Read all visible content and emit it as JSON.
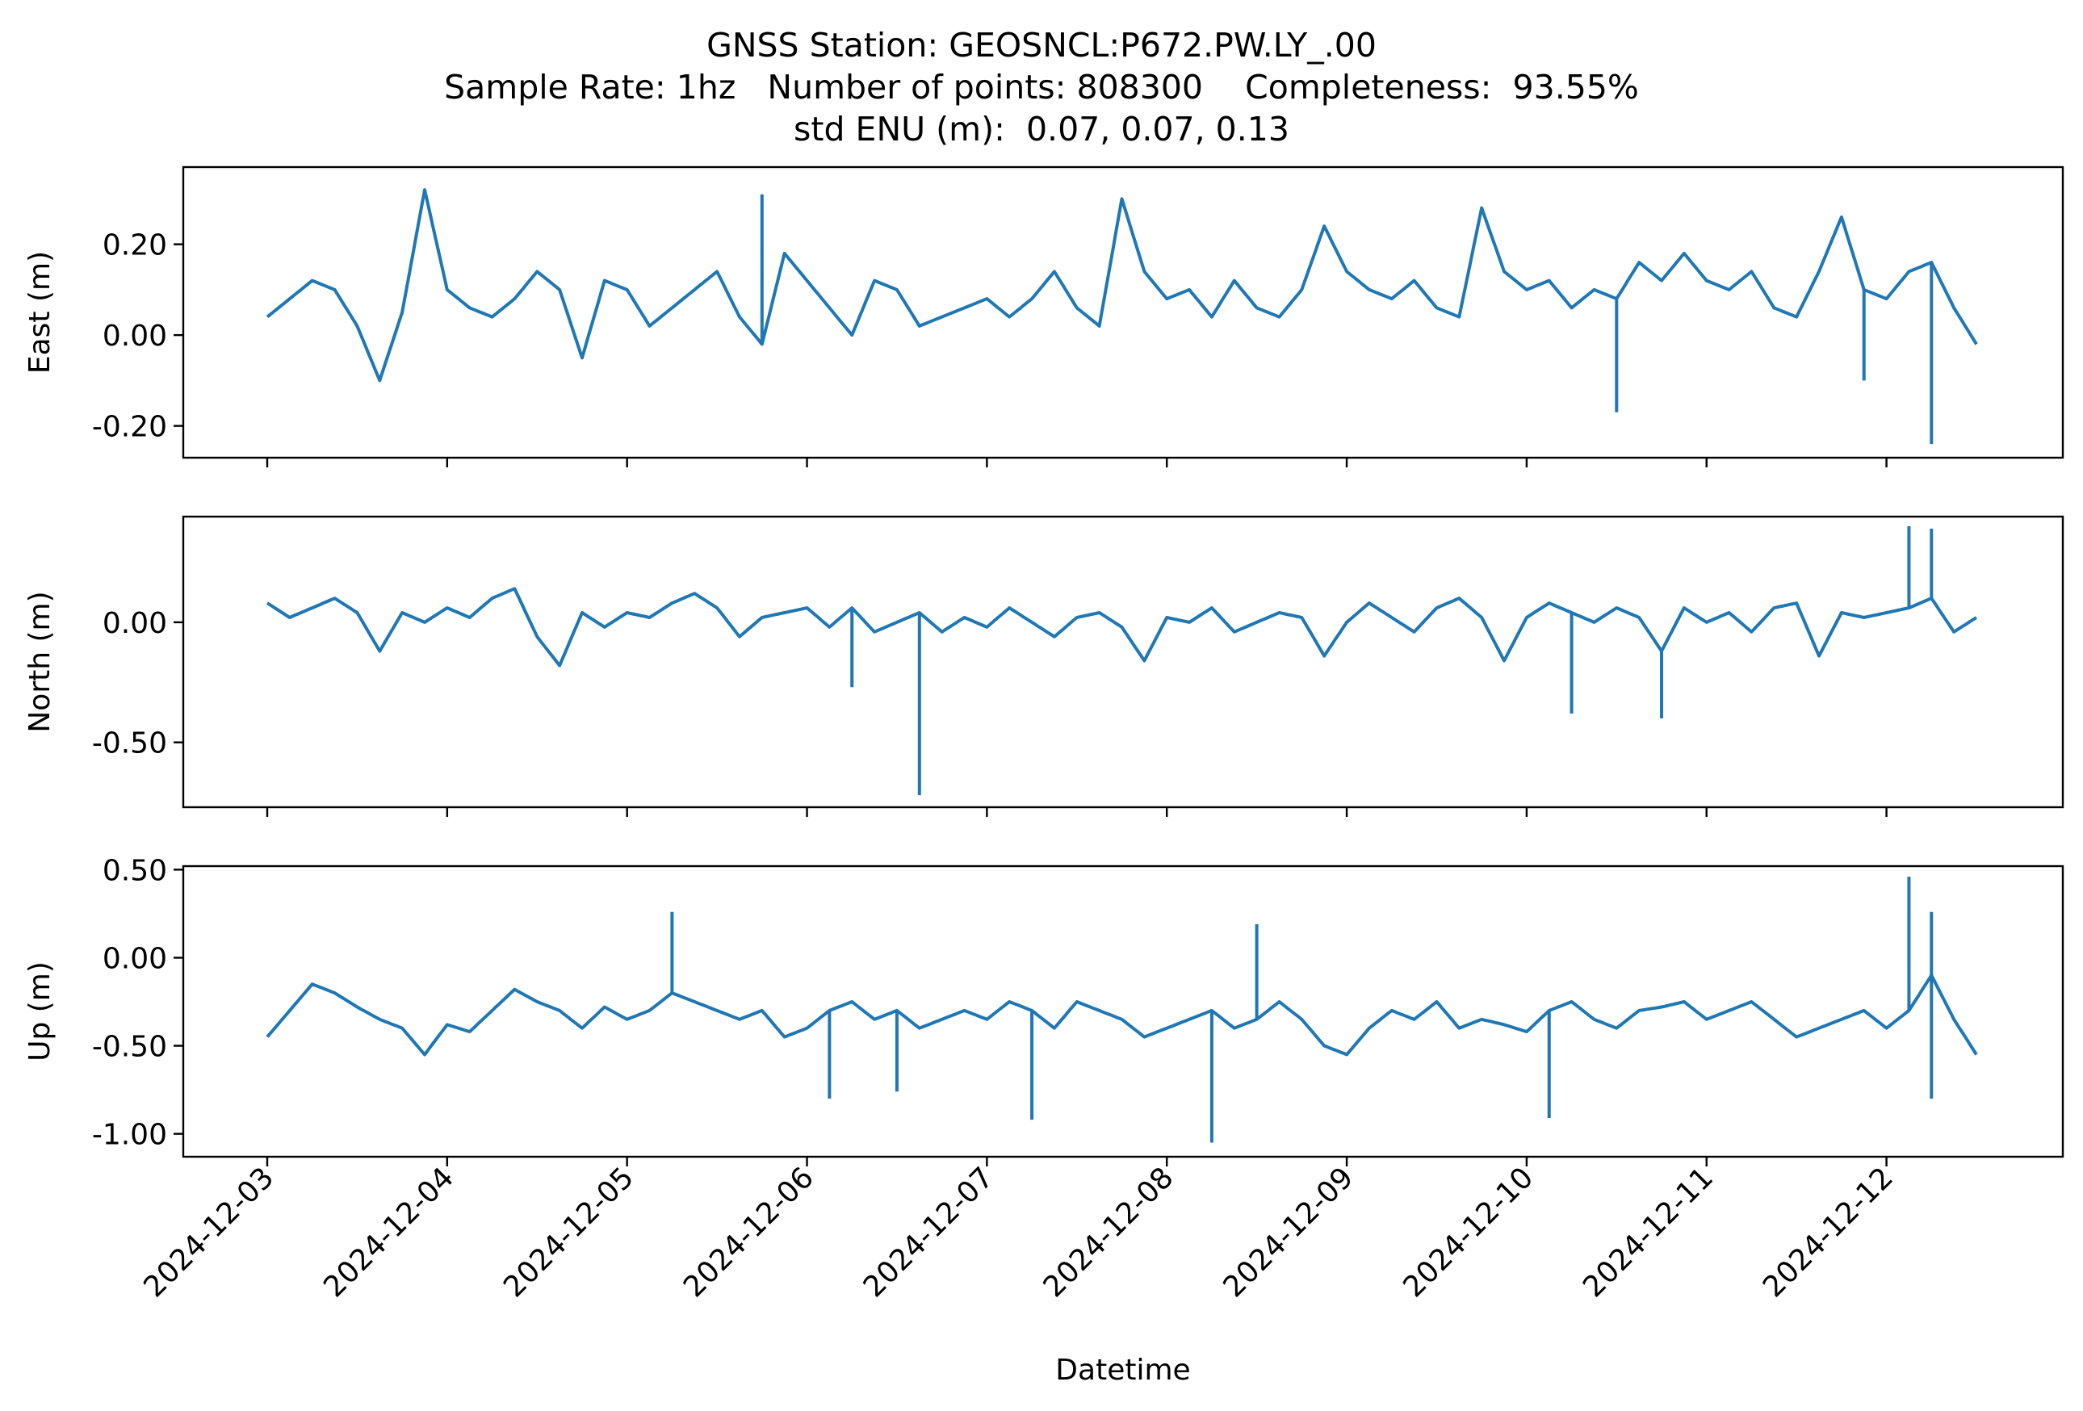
{
  "title_lines": [
    "GNSS Station: GEOSNCL:P672.PW.LY_.00",
    "Sample Rate: 1hz   Number of points: 808300    Completeness:  93.55%",
    "std ENU (m):  0.07, 0.07, 0.13"
  ],
  "chart_data": {
    "type": "line",
    "xlabel": "Datetime",
    "x_range": [
      "2024-12-03T00:00",
      "2024-12-12T12:00"
    ],
    "x_ticks": [
      "2024-12-03",
      "2024-12-04",
      "2024-12-05",
      "2024-12-06",
      "2024-12-07",
      "2024-12-08",
      "2024-12-09",
      "2024-12-10",
      "2024-12-11",
      "2024-12-12"
    ],
    "series_color": "#1f77b4",
    "panels": [
      {
        "ylabel": "East (m)",
        "ylim": [
          -0.27,
          0.37
        ],
        "yticks": [
          -0.2,
          0.0,
          0.2
        ],
        "ytick_labels": [
          "-0.20",
          "0.00",
          "0.20"
        ],
        "series": {
          "x": [
            "2024-12-03T00:00",
            "2024-12-03T03:00",
            "2024-12-03T06:00",
            "2024-12-03T09:00",
            "2024-12-03T12:00",
            "2024-12-03T15:00",
            "2024-12-03T18:00",
            "2024-12-03T21:00",
            "2024-12-04T00:00",
            "2024-12-04T03:00",
            "2024-12-04T06:00",
            "2024-12-04T09:00",
            "2024-12-04T12:00",
            "2024-12-04T15:00",
            "2024-12-04T18:00",
            "2024-12-04T21:00",
            "2024-12-05T00:00",
            "2024-12-05T03:00",
            "2024-12-05T06:00",
            "2024-12-05T09:00",
            "2024-12-05T12:00",
            "2024-12-05T15:00",
            "2024-12-05T18:00",
            "2024-12-05T21:00",
            "2024-12-06T00:00",
            "2024-12-06T03:00",
            "2024-12-06T06:00",
            "2024-12-06T09:00",
            "2024-12-06T12:00",
            "2024-12-06T15:00",
            "2024-12-06T18:00",
            "2024-12-06T21:00",
            "2024-12-07T00:00",
            "2024-12-07T03:00",
            "2024-12-07T06:00",
            "2024-12-07T09:00",
            "2024-12-07T12:00",
            "2024-12-07T15:00",
            "2024-12-07T18:00",
            "2024-12-07T21:00",
            "2024-12-08T00:00",
            "2024-12-08T03:00",
            "2024-12-08T06:00",
            "2024-12-08T09:00",
            "2024-12-08T12:00",
            "2024-12-08T15:00",
            "2024-12-08T18:00",
            "2024-12-08T21:00",
            "2024-12-09T00:00",
            "2024-12-09T03:00",
            "2024-12-09T06:00",
            "2024-12-09T09:00",
            "2024-12-09T12:00",
            "2024-12-09T15:00",
            "2024-12-09T18:00",
            "2024-12-09T21:00",
            "2024-12-10T00:00",
            "2024-12-10T03:00",
            "2024-12-10T06:00",
            "2024-12-10T09:00",
            "2024-12-10T12:00",
            "2024-12-10T15:00",
            "2024-12-10T18:00",
            "2024-12-10T21:00",
            "2024-12-11T00:00",
            "2024-12-11T03:00",
            "2024-12-11T06:00",
            "2024-12-11T09:00",
            "2024-12-11T12:00",
            "2024-12-11T15:00",
            "2024-12-11T18:00",
            "2024-12-11T21:00",
            "2024-12-12T00:00",
            "2024-12-12T03:00",
            "2024-12-12T06:00",
            "2024-12-12T09:00",
            "2024-12-12T12:00"
          ],
          "y": [
            0.04,
            0.08,
            0.12,
            0.1,
            0.02,
            -0.1,
            0.05,
            0.32,
            0.1,
            0.06,
            0.04,
            0.08,
            0.14,
            0.1,
            -0.05,
            0.12,
            0.1,
            0.02,
            0.06,
            0.1,
            0.14,
            0.04,
            -0.02,
            0.18,
            0.12,
            0.06,
            0.0,
            0.12,
            0.1,
            0.02,
            0.04,
            0.06,
            0.08,
            0.04,
            0.08,
            0.14,
            0.06,
            0.02,
            0.3,
            0.14,
            0.08,
            0.1,
            0.04,
            0.12,
            0.06,
            0.04,
            0.1,
            0.24,
            0.14,
            0.1,
            0.08,
            0.12,
            0.06,
            0.04,
            0.28,
            0.14,
            0.1,
            0.12,
            0.06,
            0.1,
            0.08,
            0.16,
            0.12,
            0.18,
            0.12,
            0.1,
            0.14,
            0.06,
            0.04,
            0.14,
            0.26,
            0.1,
            0.08,
            0.14,
            0.16,
            0.06,
            -0.02
          ],
          "spikes": [
            [
              "2024-12-05T18:00",
              0.31
            ],
            [
              "2024-12-10T12:00",
              -0.17
            ],
            [
              "2024-12-11T21:00",
              -0.1
            ],
            [
              "2024-12-12T06:00",
              -0.24
            ]
          ]
        }
      },
      {
        "ylabel": "North (m)",
        "ylim": [
          -0.77,
          0.44
        ],
        "yticks": [
          -0.5,
          0.0
        ],
        "ytick_labels": [
          "-0.50",
          "0.00"
        ],
        "series": {
          "x": [
            "2024-12-03T00:00",
            "2024-12-03T03:00",
            "2024-12-03T06:00",
            "2024-12-03T09:00",
            "2024-12-03T12:00",
            "2024-12-03T15:00",
            "2024-12-03T18:00",
            "2024-12-03T21:00",
            "2024-12-04T00:00",
            "2024-12-04T03:00",
            "2024-12-04T06:00",
            "2024-12-04T09:00",
            "2024-12-04T12:00",
            "2024-12-04T15:00",
            "2024-12-04T18:00",
            "2024-12-04T21:00",
            "2024-12-05T00:00",
            "2024-12-05T03:00",
            "2024-12-05T06:00",
            "2024-12-05T09:00",
            "2024-12-05T12:00",
            "2024-12-05T15:00",
            "2024-12-05T18:00",
            "2024-12-05T21:00",
            "2024-12-06T00:00",
            "2024-12-06T03:00",
            "2024-12-06T06:00",
            "2024-12-06T09:00",
            "2024-12-06T12:00",
            "2024-12-06T15:00",
            "2024-12-06T18:00",
            "2024-12-06T21:00",
            "2024-12-07T00:00",
            "2024-12-07T03:00",
            "2024-12-07T06:00",
            "2024-12-07T09:00",
            "2024-12-07T12:00",
            "2024-12-07T15:00",
            "2024-12-07T18:00",
            "2024-12-07T21:00",
            "2024-12-08T00:00",
            "2024-12-08T03:00",
            "2024-12-08T06:00",
            "2024-12-08T09:00",
            "2024-12-08T12:00",
            "2024-12-08T15:00",
            "2024-12-08T18:00",
            "2024-12-08T21:00",
            "2024-12-09T00:00",
            "2024-12-09T03:00",
            "2024-12-09T06:00",
            "2024-12-09T09:00",
            "2024-12-09T12:00",
            "2024-12-09T15:00",
            "2024-12-09T18:00",
            "2024-12-09T21:00",
            "2024-12-10T00:00",
            "2024-12-10T03:00",
            "2024-12-10T06:00",
            "2024-12-10T09:00",
            "2024-12-10T12:00",
            "2024-12-10T15:00",
            "2024-12-10T18:00",
            "2024-12-10T21:00",
            "2024-12-11T00:00",
            "2024-12-11T03:00",
            "2024-12-11T06:00",
            "2024-12-11T09:00",
            "2024-12-11T12:00",
            "2024-12-11T15:00",
            "2024-12-11T18:00",
            "2024-12-11T21:00",
            "2024-12-12T00:00",
            "2024-12-12T03:00",
            "2024-12-12T06:00",
            "2024-12-12T09:00",
            "2024-12-12T12:00"
          ],
          "y": [
            0.08,
            0.02,
            0.06,
            0.1,
            0.04,
            -0.12,
            0.04,
            0.0,
            0.06,
            0.02,
            0.1,
            0.14,
            -0.06,
            -0.18,
            0.04,
            -0.02,
            0.04,
            0.02,
            0.08,
            0.12,
            0.06,
            -0.06,
            0.02,
            0.04,
            0.06,
            -0.02,
            0.06,
            -0.04,
            0.0,
            0.04,
            -0.04,
            0.02,
            -0.02,
            0.06,
            0.0,
            -0.06,
            0.02,
            0.04,
            -0.02,
            -0.16,
            0.02,
            0.0,
            0.06,
            -0.04,
            0.0,
            0.04,
            0.02,
            -0.14,
            0.0,
            0.08,
            0.02,
            -0.04,
            0.06,
            0.1,
            0.02,
            -0.16,
            0.02,
            0.08,
            0.04,
            0.0,
            0.06,
            0.02,
            -0.12,
            0.06,
            0.0,
            0.04,
            -0.04,
            0.06,
            0.08,
            -0.14,
            0.04,
            0.02,
            0.04,
            0.06,
            0.1,
            -0.04,
            0.02
          ],
          "spikes": [
            [
              "2024-12-06T06:00",
              -0.27
            ],
            [
              "2024-12-06T15:00",
              -0.72
            ],
            [
              "2024-12-10T06:00",
              -0.38
            ],
            [
              "2024-12-10T18:00",
              -0.4
            ],
            [
              "2024-12-12T03:00",
              0.4
            ],
            [
              "2024-12-12T06:00",
              0.39
            ]
          ]
        }
      },
      {
        "ylabel": "Up (m)",
        "ylim": [
          -1.13,
          0.52
        ],
        "yticks": [
          -1.0,
          -0.5,
          0.0,
          0.5
        ],
        "ytick_labels": [
          "-1.00",
          "-0.50",
          "0.00",
          "0.50"
        ],
        "series": {
          "x": [
            "2024-12-03T00:00",
            "2024-12-03T03:00",
            "2024-12-03T06:00",
            "2024-12-03T09:00",
            "2024-12-03T12:00",
            "2024-12-03T15:00",
            "2024-12-03T18:00",
            "2024-12-03T21:00",
            "2024-12-04T00:00",
            "2024-12-04T03:00",
            "2024-12-04T06:00",
            "2024-12-04T09:00",
            "2024-12-04T12:00",
            "2024-12-04T15:00",
            "2024-12-04T18:00",
            "2024-12-04T21:00",
            "2024-12-05T00:00",
            "2024-12-05T03:00",
            "2024-12-05T06:00",
            "2024-12-05T09:00",
            "2024-12-05T12:00",
            "2024-12-05T15:00",
            "2024-12-05T18:00",
            "2024-12-05T21:00",
            "2024-12-06T00:00",
            "2024-12-06T03:00",
            "2024-12-06T06:00",
            "2024-12-06T09:00",
            "2024-12-06T12:00",
            "2024-12-06T15:00",
            "2024-12-06T18:00",
            "2024-12-06T21:00",
            "2024-12-07T00:00",
            "2024-12-07T03:00",
            "2024-12-07T06:00",
            "2024-12-07T09:00",
            "2024-12-07T12:00",
            "2024-12-07T15:00",
            "2024-12-07T18:00",
            "2024-12-07T21:00",
            "2024-12-08T00:00",
            "2024-12-08T03:00",
            "2024-12-08T06:00",
            "2024-12-08T09:00",
            "2024-12-08T12:00",
            "2024-12-08T15:00",
            "2024-12-08T18:00",
            "2024-12-08T21:00",
            "2024-12-09T00:00",
            "2024-12-09T03:00",
            "2024-12-09T06:00",
            "2024-12-09T09:00",
            "2024-12-09T12:00",
            "2024-12-09T15:00",
            "2024-12-09T18:00",
            "2024-12-09T21:00",
            "2024-12-10T00:00",
            "2024-12-10T03:00",
            "2024-12-10T06:00",
            "2024-12-10T09:00",
            "2024-12-10T12:00",
            "2024-12-10T15:00",
            "2024-12-10T18:00",
            "2024-12-10T21:00",
            "2024-12-11T00:00",
            "2024-12-11T03:00",
            "2024-12-11T06:00",
            "2024-12-11T09:00",
            "2024-12-11T12:00",
            "2024-12-11T15:00",
            "2024-12-11T18:00",
            "2024-12-11T21:00",
            "2024-12-12T00:00",
            "2024-12-12T03:00",
            "2024-12-12T06:00",
            "2024-12-12T09:00",
            "2024-12-12T12:00"
          ],
          "y": [
            -0.45,
            -0.3,
            -0.15,
            -0.2,
            -0.28,
            -0.35,
            -0.4,
            -0.55,
            -0.38,
            -0.42,
            -0.3,
            -0.18,
            -0.25,
            -0.3,
            -0.4,
            -0.28,
            -0.35,
            -0.3,
            -0.2,
            -0.25,
            -0.3,
            -0.35,
            -0.3,
            -0.45,
            -0.4,
            -0.3,
            -0.25,
            -0.35,
            -0.3,
            -0.4,
            -0.35,
            -0.3,
            -0.35,
            -0.25,
            -0.3,
            -0.4,
            -0.25,
            -0.3,
            -0.35,
            -0.45,
            -0.4,
            -0.35,
            -0.3,
            -0.4,
            -0.35,
            -0.25,
            -0.35,
            -0.5,
            -0.55,
            -0.4,
            -0.3,
            -0.35,
            -0.25,
            -0.4,
            -0.35,
            -0.38,
            -0.42,
            -0.3,
            -0.25,
            -0.35,
            -0.4,
            -0.3,
            -0.28,
            -0.25,
            -0.35,
            -0.3,
            -0.25,
            -0.35,
            -0.45,
            -0.4,
            -0.35,
            -0.3,
            -0.4,
            -0.3,
            -0.1,
            -0.35,
            -0.55
          ],
          "spikes": [
            [
              "2024-12-05T06:00",
              0.26
            ],
            [
              "2024-12-06T03:00",
              -0.8
            ],
            [
              "2024-12-06T12:00",
              -0.76
            ],
            [
              "2024-12-07T06:00",
              -0.92
            ],
            [
              "2024-12-08T06:00",
              -1.05
            ],
            [
              "2024-12-08T12:00",
              0.19
            ],
            [
              "2024-12-10T03:00",
              -0.91
            ],
            [
              "2024-12-12T06:00",
              -0.8
            ],
            [
              "2024-12-12T03:00",
              0.46
            ],
            [
              "2024-12-12T06:00",
              0.26
            ]
          ]
        }
      }
    ]
  }
}
